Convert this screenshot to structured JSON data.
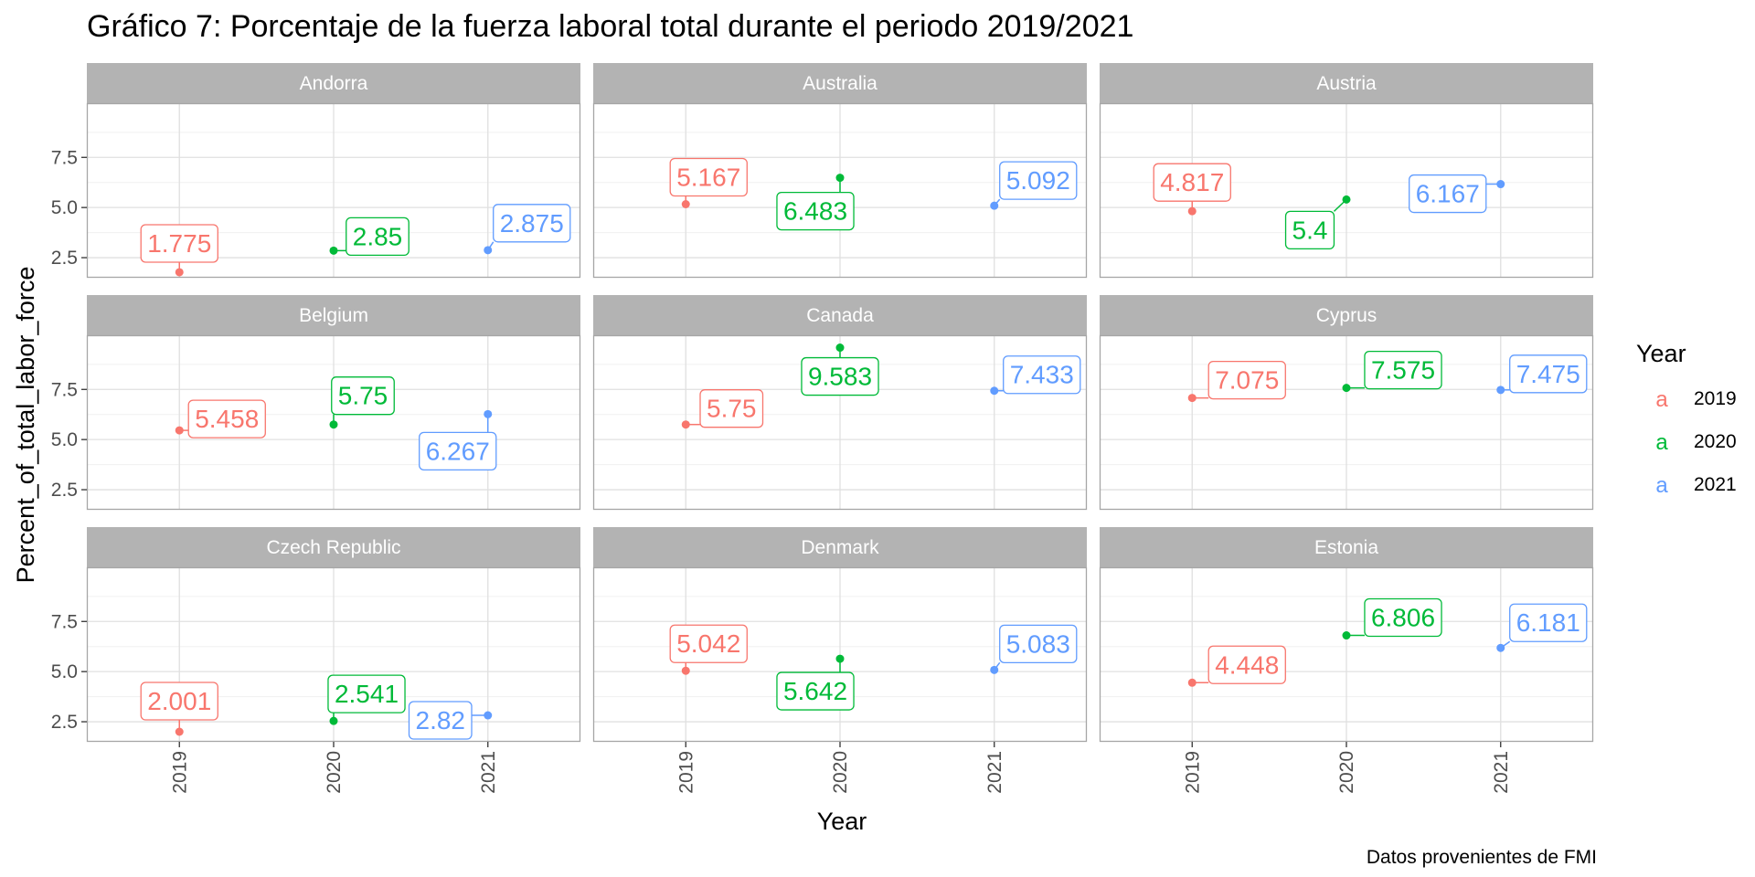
{
  "chart_data": {
    "type": "scatter",
    "title": "Gráfico 7: Porcentaje de la fuerza laboral total durante el periodo 2019/2021",
    "xlabel": "Year",
    "ylabel": "Percent_of_total_labor_force",
    "caption": "Datos provenientes de FMI",
    "x": [
      "2019",
      "2020",
      "2021"
    ],
    "y_ticks": [
      "2.5",
      "5.0",
      "7.5"
    ],
    "ylim": [
      1.5,
      10.2
    ],
    "grid": true,
    "legend": {
      "title": "Year",
      "position": "right",
      "key_glyph": "a",
      "entries": [
        {
          "label": "2019",
          "color": "#F8766D"
        },
        {
          "label": "2020",
          "color": "#00BA38"
        },
        {
          "label": "2021",
          "color": "#619CFF"
        }
      ]
    },
    "facets": [
      {
        "name": "Andorra",
        "values": [
          1.775,
          2.85,
          2.875
        ],
        "labels": [
          "1.775",
          "2.85",
          "2.875"
        ]
      },
      {
        "name": "Australia",
        "values": [
          5.167,
          6.483,
          5.092
        ],
        "labels": [
          "5.167",
          "6.483",
          "5.092"
        ]
      },
      {
        "name": "Austria",
        "values": [
          4.817,
          5.4,
          6.167
        ],
        "labels": [
          "4.817",
          "5.4",
          "6.167"
        ]
      },
      {
        "name": "Belgium",
        "values": [
          5.458,
          5.75,
          6.267
        ],
        "labels": [
          "5.458",
          "5.75",
          "6.267"
        ]
      },
      {
        "name": "Canada",
        "values": [
          5.75,
          9.583,
          7.433
        ],
        "labels": [
          "5.75",
          "9.583",
          "7.433"
        ]
      },
      {
        "name": "Cyprus",
        "values": [
          7.075,
          7.575,
          7.475
        ],
        "labels": [
          "7.075",
          "7.575",
          "7.475"
        ]
      },
      {
        "name": "Czech Republic",
        "values": [
          2.001,
          2.541,
          2.82
        ],
        "labels": [
          "2.001",
          "2.541",
          "2.82"
        ]
      },
      {
        "name": "Denmark",
        "values": [
          5.042,
          5.642,
          5.083
        ],
        "labels": [
          "5.042",
          "5.642",
          "5.083"
        ]
      },
      {
        "name": "Estonia",
        "values": [
          4.448,
          6.806,
          6.181
        ],
        "labels": [
          "4.448",
          "6.806",
          "6.181"
        ]
      }
    ]
  }
}
